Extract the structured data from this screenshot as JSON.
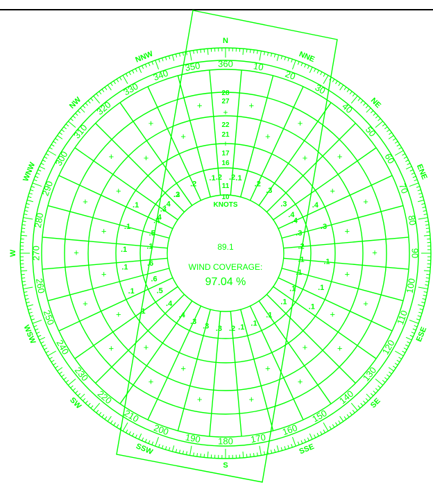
{
  "colors": {
    "line": "#00ff00",
    "background": "#ffffff",
    "rule": "#000000"
  },
  "degree_labels": [
    "10",
    "20",
    "30",
    "40",
    "50",
    "60",
    "70",
    "80",
    "90",
    "100",
    "110",
    "120",
    "130",
    "140",
    "150",
    "160",
    "170",
    "180",
    "190",
    "200",
    "210",
    "220",
    "230",
    "240",
    "250",
    "260",
    "270",
    "280",
    "290",
    "300",
    "310",
    "320",
    "330",
    "340",
    "350",
    "360"
  ],
  "directions": [
    {
      "label": "N",
      "deg": 0
    },
    {
      "label": "NNE",
      "deg": 22.5
    },
    {
      "label": "NE",
      "deg": 45
    },
    {
      "label": "ENE",
      "deg": 67.5
    },
    {
      "label": "E",
      "deg": 90
    },
    {
      "label": "ESE",
      "deg": 112.5
    },
    {
      "label": "SE",
      "deg": 135
    },
    {
      "label": "SSE",
      "deg": 157.5
    },
    {
      "label": "S",
      "deg": 180
    },
    {
      "label": "SSW",
      "deg": 202.5
    },
    {
      "label": "SW",
      "deg": 225
    },
    {
      "label": "WSW",
      "deg": 247.5
    },
    {
      "label": "W",
      "deg": 270
    },
    {
      "label": "WNW",
      "deg": 292.5
    },
    {
      "label": "NW",
      "deg": 315
    },
    {
      "label": "NNW",
      "deg": 337.5
    }
  ],
  "speed_scale": [
    "28",
    "27",
    "+",
    "22",
    "21",
    "+",
    "17",
    "16",
    "11",
    "10"
  ],
  "knots_label": "KNOTS",
  "center_value": "89.1",
  "coverage_label": "WIND COVERAGE:",
  "coverage_value": "97.04 %",
  "cells": [
    {
      "v": ".1",
      "deg": -10,
      "ring": 1
    },
    {
      "v": ".1",
      "deg": 10,
      "ring": 1
    },
    {
      "v": ".2",
      "deg": -25,
      "ring": 1
    },
    {
      "v": ".2",
      "deg": 25,
      "ring": 1
    },
    {
      "v": ".2",
      "deg": -5,
      "ring": 1
    },
    {
      "v": ".2",
      "deg": 5,
      "ring": 1
    },
    {
      "v": ".3",
      "deg": -40,
      "ring": 1
    },
    {
      "v": ".3",
      "deg": 35,
      "ring": 1
    },
    {
      "v": ".3",
      "deg": 50,
      "ring": 1
    },
    {
      "v": ".4",
      "deg": 60,
      "ring": 1
    },
    {
      "v": ".3",
      "deg": -55,
      "ring": 1
    },
    {
      "v": ".4",
      "deg": -65,
      "ring": 1
    },
    {
      "v": ".4",
      "deg": 65,
      "ring": 1
    },
    {
      "v": ".3",
      "deg": 75,
      "ring": 1
    },
    {
      "v": ".2",
      "deg": 85,
      "ring": 1
    },
    {
      "v": ".1",
      "deg": 95,
      "ring": 1
    },
    {
      "v": ".1",
      "deg": 105,
      "ring": 1
    },
    {
      "v": ".1",
      "deg": 118,
      "ring": 1
    },
    {
      "v": ".1",
      "deg": 130,
      "ring": 1
    },
    {
      "v": ".1",
      "deg": 145,
      "ring": 1
    },
    {
      "v": ".1",
      "deg": 158,
      "ring": 1
    },
    {
      "v": ".1",
      "deg": 168,
      "ring": 1
    },
    {
      "v": ".2",
      "deg": 175,
      "ring": 1
    },
    {
      "v": ".3",
      "deg": 185,
      "ring": 1
    },
    {
      "v": ".3",
      "deg": 195,
      "ring": 1
    },
    {
      "v": ".3",
      "deg": 205,
      "ring": 1
    },
    {
      "v": ".4",
      "deg": 215,
      "ring": 1
    },
    {
      "v": ".4",
      "deg": 228,
      "ring": 1
    },
    {
      "v": ".5",
      "deg": 240,
      "ring": 1
    },
    {
      "v": ".6",
      "deg": 250,
      "ring": 1
    },
    {
      "v": ".6",
      "deg": 262,
      "ring": 1
    },
    {
      "v": ".1",
      "deg": 275,
      "ring": 1
    },
    {
      "v": ".5",
      "deg": 285,
      "ring": 1
    },
    {
      "v": ".4",
      "deg": 298,
      "ring": 1
    },
    {
      "v": ".4",
      "deg": 310,
      "ring": 1
    },
    {
      "v": ".2",
      "deg": 320,
      "ring": 1
    },
    {
      "v": ".1",
      "deg": 272,
      "ring": 2
    },
    {
      "v": ".1",
      "deg": 285,
      "ring": 2
    },
    {
      "v": ".1",
      "deg": 298,
      "ring": 2
    },
    {
      "v": ".1",
      "deg": 262,
      "ring": 2
    },
    {
      "v": ".1",
      "deg": 248,
      "ring": 2
    },
    {
      "v": ".1",
      "deg": 235,
      "ring": 2
    },
    {
      "v": ".1",
      "deg": 95,
      "ring": 2
    },
    {
      "v": ".1",
      "deg": 110,
      "ring": 2
    },
    {
      "v": ".1",
      "deg": 122,
      "ring": 2
    },
    {
      "v": ".3",
      "deg": 75,
      "ring": 2
    },
    {
      "v": ".4",
      "deg": 62,
      "ring": 2
    }
  ],
  "ticks_label_radius_note": ""
}
